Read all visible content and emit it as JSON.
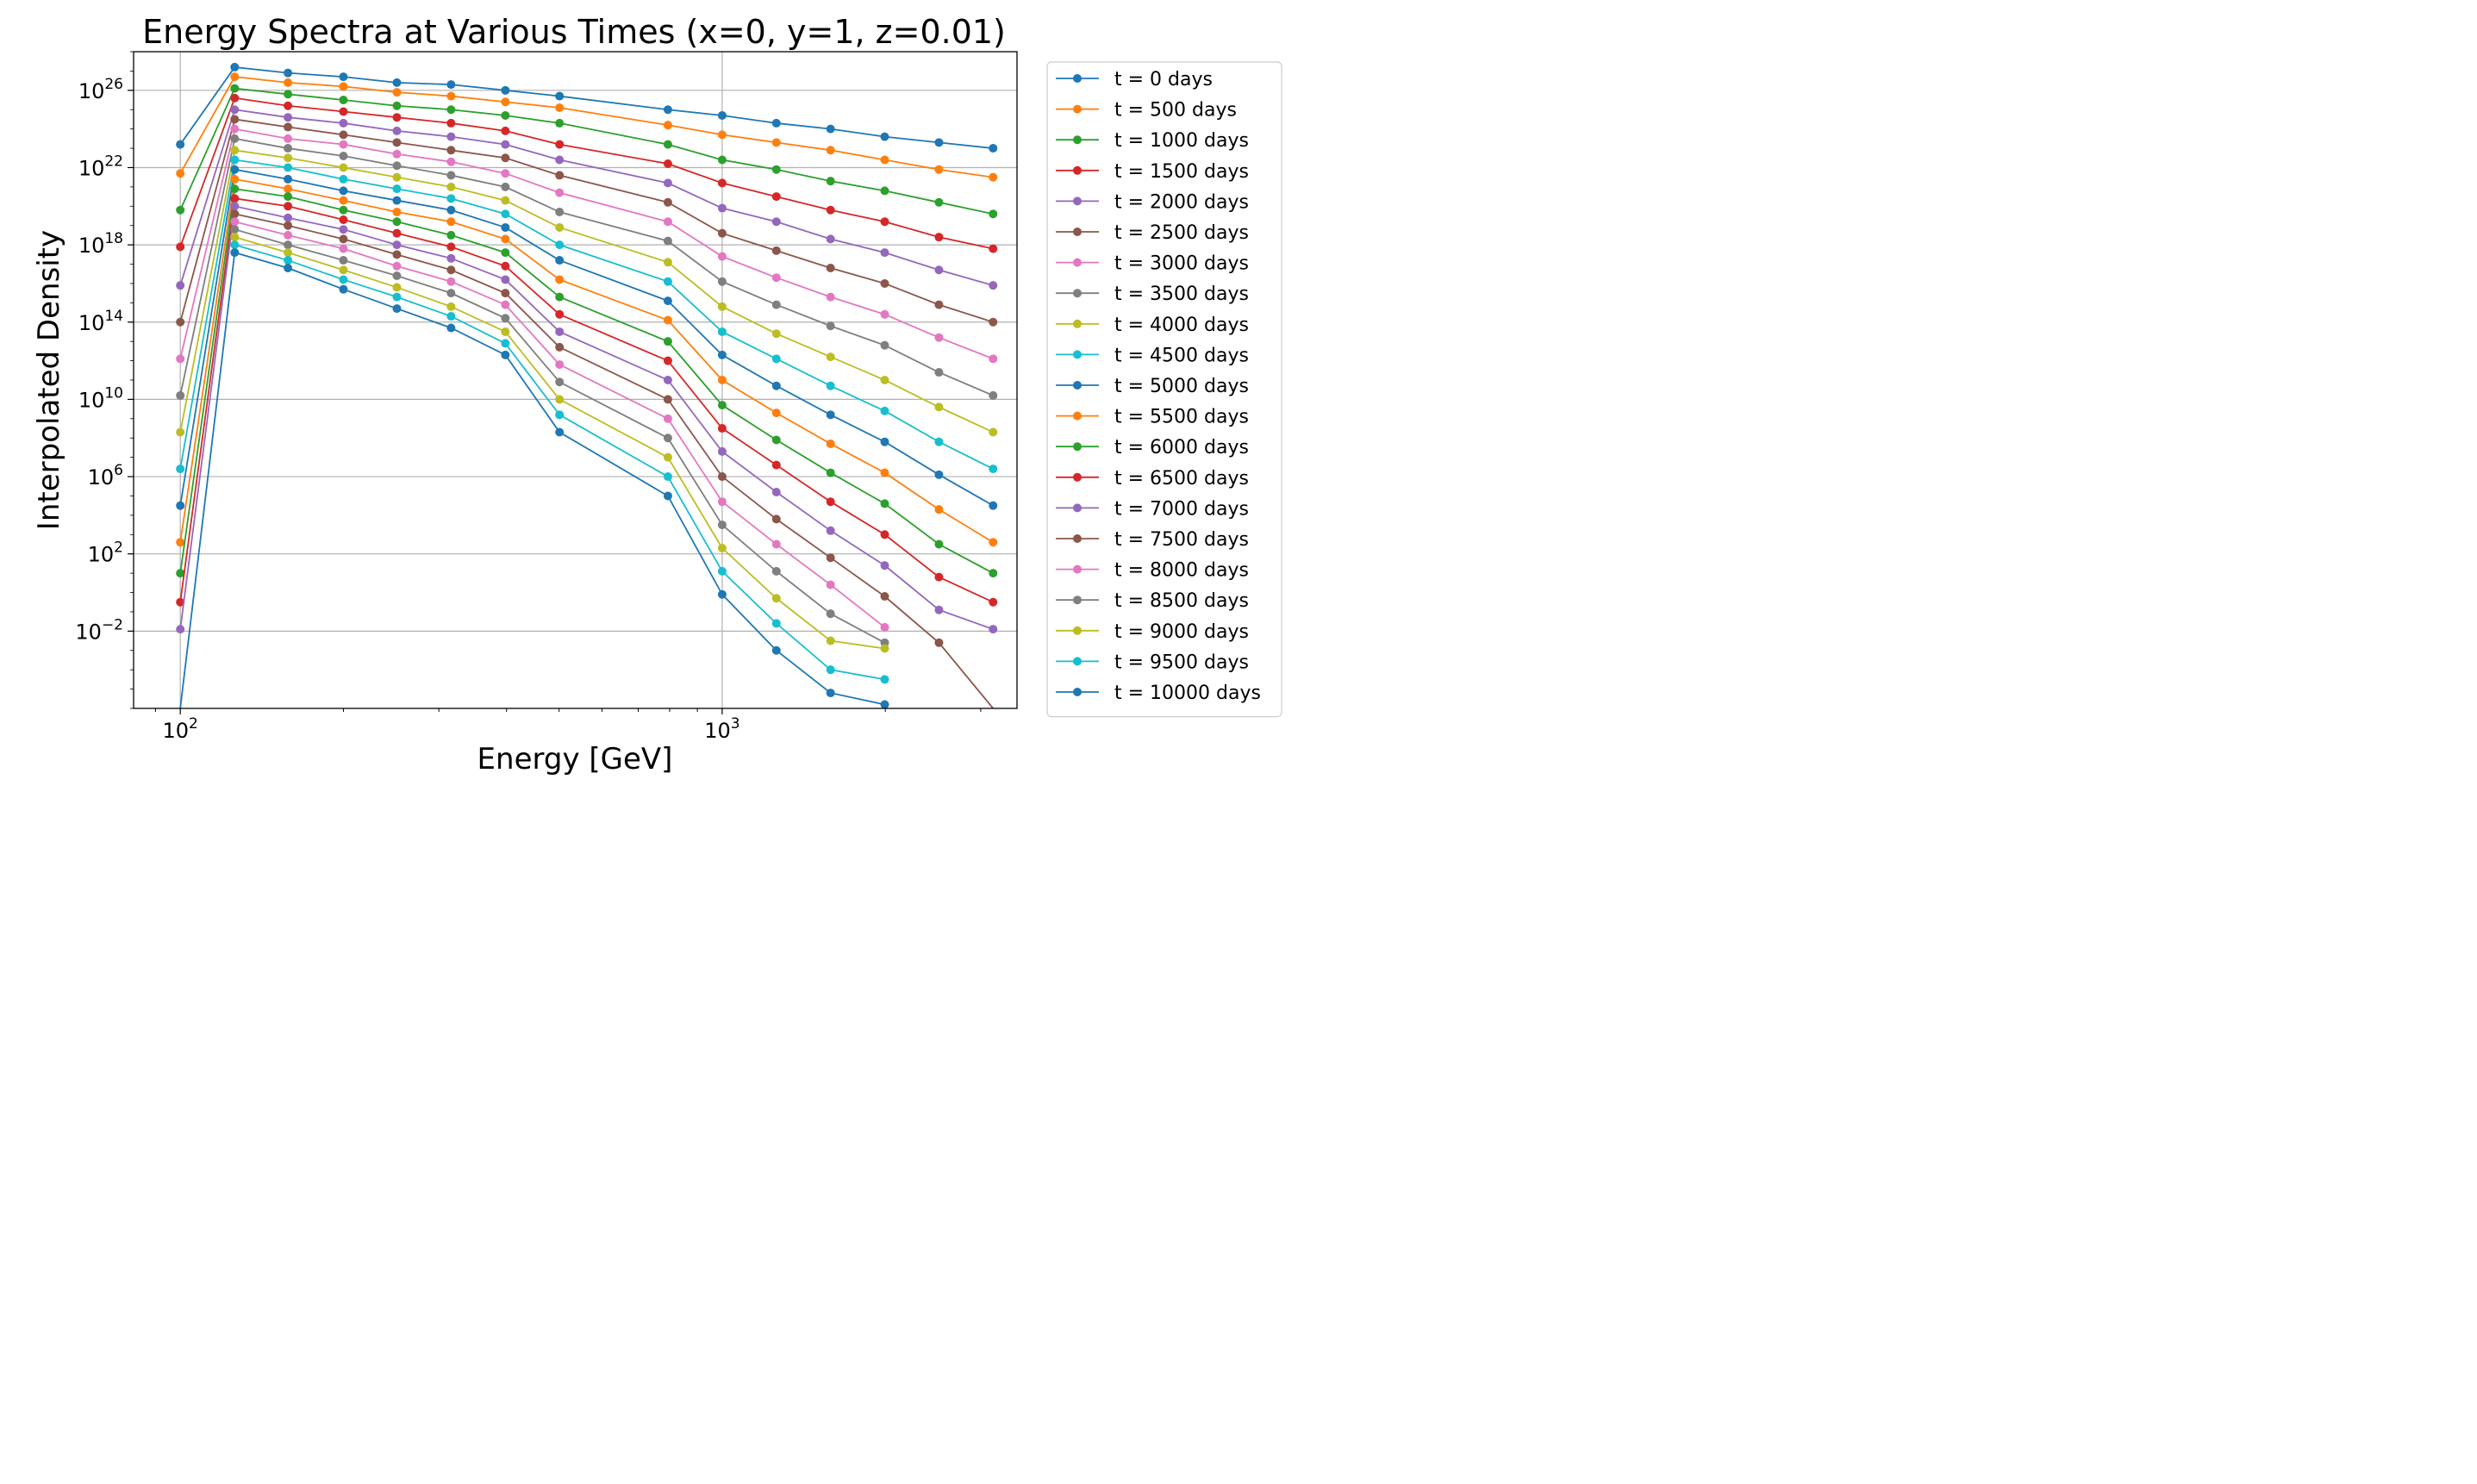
{
  "chart_data": {
    "type": "line",
    "title": "Energy Spectra at Various Times (x=0, y=1, z=0.01)",
    "xlabel": "Energy [GeV]",
    "ylabel": "Interpolated Density",
    "xscale": "log",
    "yscale": "log",
    "xlim": [
      82,
      3500
    ],
    "ylim": [
      1e-06,
      1e+28
    ],
    "grid": true,
    "legend_position": "outside-right",
    "x_ticks": [
      {
        "value": 100,
        "base": "10",
        "exp": "2"
      },
      {
        "value": 1000,
        "base": "10",
        "exp": "3"
      }
    ],
    "y_ticks": [
      {
        "value": 1e+26,
        "base": "10",
        "exp": "26"
      },
      {
        "value": 1e+22,
        "base": "10",
        "exp": "22"
      },
      {
        "value": 1e+18,
        "base": "10",
        "exp": "18"
      },
      {
        "value": 100000000000000.0,
        "base": "10",
        "exp": "14"
      },
      {
        "value": 10000000000.0,
        "base": "10",
        "exp": "10"
      },
      {
        "value": 1000000.0,
        "base": "10",
        "exp": "6"
      },
      {
        "value": 100,
        "base": "10",
        "exp": "2"
      },
      {
        "value": 0.01,
        "base": "10",
        "exp": "−2"
      }
    ],
    "x": [
      100,
      126,
      158,
      200,
      251,
      316,
      398,
      501,
      794,
      1000,
      1259,
      1585,
      1995,
      2512,
      3162
    ],
    "series": [
      {
        "name": "t = 0 days",
        "color": "#1f77b4",
        "log10_values": [
          23.2,
          27.2,
          26.9,
          26.7,
          26.4,
          26.3,
          26.0,
          25.7,
          25.0,
          24.7,
          24.3,
          24.0,
          23.6,
          23.3,
          23.0
        ]
      },
      {
        "name": "t = 500 days",
        "color": "#ff7f0e",
        "log10_values": [
          21.7,
          26.7,
          26.4,
          26.2,
          25.9,
          25.7,
          25.4,
          25.1,
          24.2,
          23.7,
          23.3,
          22.9,
          22.4,
          21.9,
          21.5
        ]
      },
      {
        "name": "t = 1000 days",
        "color": "#2ca02c",
        "log10_values": [
          19.8,
          26.1,
          25.8,
          25.5,
          25.2,
          25.0,
          24.7,
          24.3,
          23.2,
          22.4,
          21.9,
          21.3,
          20.8,
          20.2,
          19.6
        ]
      },
      {
        "name": "t = 1500 days",
        "color": "#d62728",
        "log10_values": [
          17.9,
          25.6,
          25.2,
          24.9,
          24.6,
          24.3,
          23.9,
          23.2,
          22.2,
          21.2,
          20.5,
          19.8,
          19.2,
          18.4,
          17.8
        ]
      },
      {
        "name": "t = 2000 days",
        "color": "#9467bd",
        "log10_values": [
          15.9,
          25.0,
          24.6,
          24.3,
          23.9,
          23.6,
          23.2,
          22.4,
          21.2,
          19.9,
          19.2,
          18.3,
          17.6,
          16.7,
          15.9
        ]
      },
      {
        "name": "t = 2500 days",
        "color": "#8c564b",
        "log10_values": [
          14.0,
          24.5,
          24.1,
          23.7,
          23.3,
          22.9,
          22.5,
          21.6,
          20.2,
          18.6,
          17.7,
          16.8,
          16.0,
          14.9,
          14.0
        ]
      },
      {
        "name": "t = 3000 days",
        "color": "#e377c2",
        "log10_values": [
          12.1,
          24.0,
          23.5,
          23.2,
          22.7,
          22.3,
          21.7,
          20.7,
          19.2,
          17.4,
          16.3,
          15.3,
          14.4,
          13.2,
          12.1
        ]
      },
      {
        "name": "t = 3500 days",
        "color": "#7f7f7f",
        "log10_values": [
          10.2,
          23.5,
          23.0,
          22.6,
          22.1,
          21.6,
          21.0,
          19.7,
          18.2,
          16.1,
          14.9,
          13.8,
          12.8,
          11.4,
          10.2
        ]
      },
      {
        "name": "t = 4000 days",
        "color": "#bcbd22",
        "log10_values": [
          8.3,
          22.9,
          22.5,
          22.0,
          21.5,
          21.0,
          20.3,
          18.9,
          17.1,
          14.8,
          13.4,
          12.2,
          11.0,
          9.6,
          8.3
        ]
      },
      {
        "name": "t = 4500 days",
        "color": "#17becf",
        "log10_values": [
          6.4,
          22.4,
          22.0,
          21.4,
          20.9,
          20.4,
          19.6,
          18.0,
          16.1,
          13.5,
          12.1,
          10.7,
          9.4,
          7.8,
          6.4
        ]
      },
      {
        "name": "t = 5000 days",
        "color": "#1f77b4",
        "log10_values": [
          4.5,
          21.9,
          21.4,
          20.8,
          20.3,
          19.8,
          18.9,
          17.2,
          15.1,
          12.3,
          10.7,
          9.2,
          7.8,
          6.1,
          4.5
        ]
      },
      {
        "name": "t = 5500 days",
        "color": "#ff7f0e",
        "log10_values": [
          2.6,
          21.4,
          20.9,
          20.3,
          19.7,
          19.2,
          18.3,
          16.2,
          14.1,
          11.0,
          9.3,
          7.7,
          6.2,
          4.3,
          2.6
        ]
      },
      {
        "name": "t = 6000 days",
        "color": "#2ca02c",
        "log10_values": [
          1.0,
          20.9,
          20.5,
          19.8,
          19.2,
          18.5,
          17.6,
          15.3,
          13.0,
          9.7,
          7.9,
          6.2,
          4.6,
          2.5,
          1.0
        ]
      },
      {
        "name": "t = 6500 days",
        "color": "#d62728",
        "log10_values": [
          -0.5,
          20.4,
          20.0,
          19.3,
          18.6,
          17.9,
          16.9,
          14.4,
          12.0,
          8.5,
          6.6,
          4.7,
          3.0,
          0.8,
          -0.5
        ]
      },
      {
        "name": "t = 7000 days",
        "color": "#9467bd",
        "log10_values": [
          -1.9,
          20.0,
          19.4,
          18.8,
          18.0,
          17.3,
          16.2,
          13.5,
          11.0,
          7.3,
          5.2,
          3.2,
          1.4,
          -0.9,
          -1.9
        ]
      },
      {
        "name": "t = 7500 days",
        "color": "#8c564b",
        "log10_values": [
          null,
          19.6,
          19.0,
          18.3,
          17.5,
          16.7,
          15.5,
          12.7,
          10.0,
          6.0,
          3.8,
          1.8,
          -0.2,
          -2.6,
          -6.0
        ]
      },
      {
        "name": "t = 8000 days",
        "color": "#e377c2",
        "log10_values": [
          null,
          19.2,
          18.5,
          17.8,
          16.9,
          16.1,
          14.9,
          11.8,
          9.0,
          4.7,
          2.5,
          0.4,
          -1.8,
          null,
          null
        ]
      },
      {
        "name": "t = 8500 days",
        "color": "#7f7f7f",
        "log10_values": [
          null,
          18.8,
          18.0,
          17.2,
          16.4,
          15.5,
          14.2,
          10.9,
          8.0,
          3.5,
          1.1,
          -1.1,
          -2.6,
          null,
          null
        ]
      },
      {
        "name": "t = 9000 days",
        "color": "#bcbd22",
        "log10_values": [
          null,
          18.4,
          17.6,
          16.7,
          15.8,
          14.8,
          13.5,
          10.0,
          7.0,
          2.3,
          -0.3,
          -2.5,
          -2.9,
          null,
          null
        ]
      },
      {
        "name": "t = 9500 days",
        "color": "#17becf",
        "log10_values": [
          null,
          18.0,
          17.2,
          16.2,
          15.3,
          14.3,
          12.9,
          9.2,
          6.0,
          1.1,
          -1.6,
          -4.0,
          -4.5,
          null,
          null
        ]
      },
      {
        "name": "t = 10000 days",
        "color": "#1f77b4",
        "log10_values": [
          -6.0,
          17.6,
          16.8,
          15.7,
          14.7,
          13.7,
          12.3,
          8.3,
          5.0,
          -0.1,
          -3.0,
          -5.2,
          -5.8,
          null,
          null
        ]
      }
    ]
  }
}
